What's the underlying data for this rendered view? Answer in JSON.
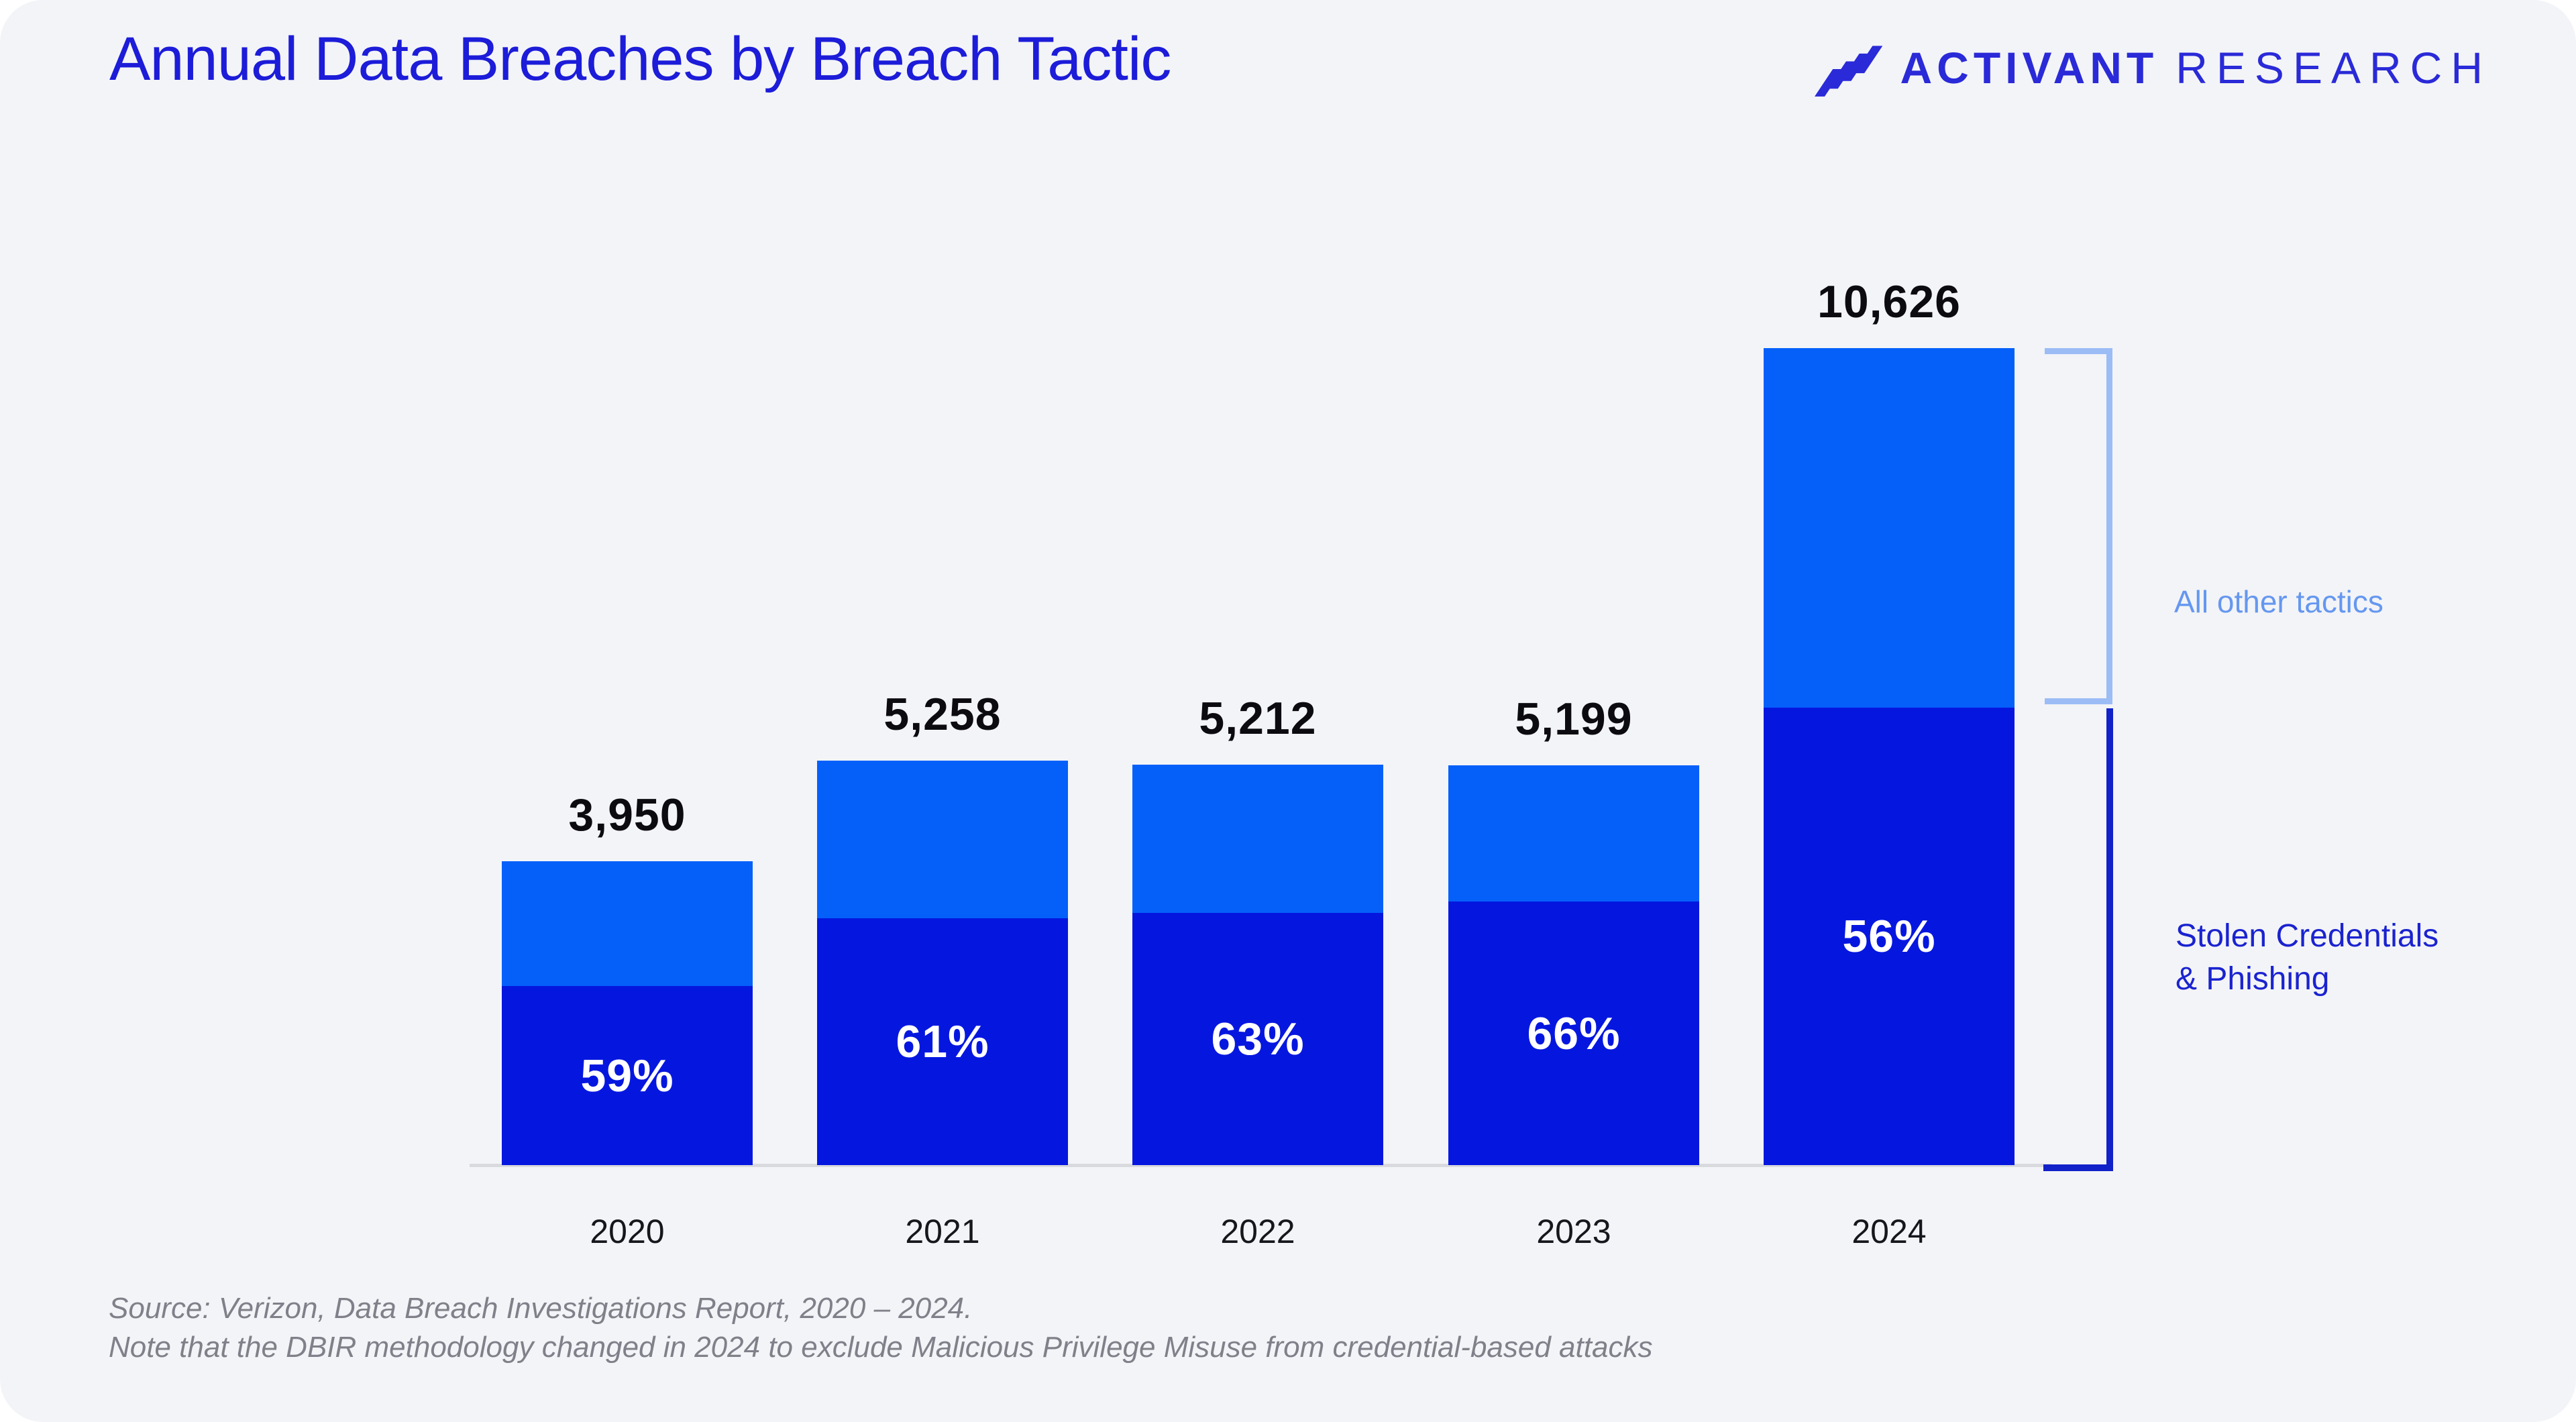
{
  "header": {
    "title": "Annual Data Breaches by Breach Tactic",
    "brand": {
      "icon": "activant-stripes-icon",
      "name": "ACTIVANT",
      "suffix": "RESEARCH"
    }
  },
  "chart_data": {
    "type": "bar",
    "stacked": true,
    "title": "Annual Data Breaches by Breach Tactic",
    "xlabel": "",
    "ylabel": "",
    "ylim": [
      0,
      10626
    ],
    "grid": false,
    "categories": [
      "2020",
      "2021",
      "2022",
      "2023",
      "2024"
    ],
    "totals": [
      3950,
      5258,
      5212,
      5199,
      10626
    ],
    "total_labels": [
      "3,950",
      "5,258",
      "5,212",
      "5,199",
      "10,626"
    ],
    "series": [
      {
        "name": "Stolen Credentials & Phishing",
        "position": "bottom",
        "color": "#0517df",
        "pct_of_total": [
          59,
          61,
          63,
          66,
          56
        ],
        "pct_labels": [
          "59%",
          "61%",
          "63%",
          "66%",
          "56%"
        ]
      },
      {
        "name": "All other tactics",
        "position": "top",
        "color": "#0560fa"
      }
    ],
    "legend_position": "right-brackets"
  },
  "annotations": {
    "all_other_label": "All other tactics",
    "stolen_line1": "Stolen Credentials",
    "stolen_line2": "& Phishing"
  },
  "footer": {
    "line1": "Source: Verizon, Data Breach Investigations Report, 2020 – 2024.",
    "line2": "Note that the DBIR methodology changed in 2024 to exclude Malicious Privilege Misuse from credential-based attacks"
  },
  "colors": {
    "card_background": "#f3f4f7",
    "title_text": "#1c1cd9",
    "brand_text": "#2a2ad8",
    "bar_top_segment": "#0560fa",
    "bar_bottom_segment": "#0517df",
    "axis_line": "#d9dadd",
    "bracket_light": "#9cbcf6",
    "bracket_dark": "#1122c8",
    "annotation_light_text": "#6597f0",
    "annotation_dark_text": "#1a23cf",
    "value_label_text": "#0b0b10",
    "pct_label_text": "#ffffff",
    "footer_text": "#80808a"
  }
}
